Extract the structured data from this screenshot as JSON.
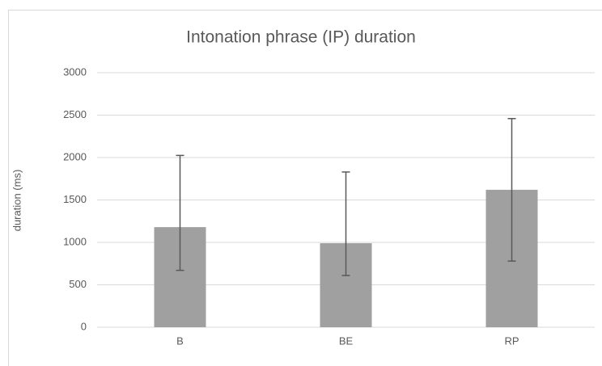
{
  "chart_data": {
    "type": "bar",
    "title": "Intonation phrase (IP) duration",
    "y_label": "duration (ms)",
    "categories": [
      "B",
      "BE",
      "RP"
    ],
    "values": [
      1180,
      990,
      1620
    ],
    "error_minus": [
      510,
      380,
      840
    ],
    "error_plus": [
      845,
      840,
      840
    ],
    "color": "#a0a0a0",
    "error_color": "#595959",
    "ylim": [
      0,
      3000
    ],
    "yticks": [
      0,
      500,
      1000,
      1500,
      2000,
      2500,
      3000
    ],
    "grid": true
  }
}
